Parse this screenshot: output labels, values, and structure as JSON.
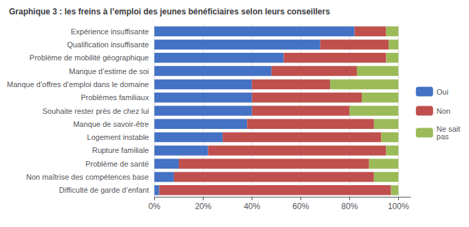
{
  "chart_data": {
    "type": "bar",
    "title": "Graphique 3 : les freins à l’emploi des jeunes bénéficiaires selon leurs conseillers",
    "orientation": "horizontal",
    "stacked": true,
    "categories": [
      "Difficulté de garde d’enfant",
      "Non maîtrise des compétences base",
      "Problème de santé",
      "Rupture familiale",
      "Logement instable",
      "Manque de savoir-être",
      "Souhaite rester près de chez lui",
      "Problèmes familiaux",
      "Manque d’offres d’emploi dans le domaine",
      "Manque d’estime de soi",
      "Problème de mobilité géographique",
      "Qualification insuffisante",
      "Expérience insuffisante"
    ],
    "series": [
      {
        "name": "Oui",
        "color": "#4472C4",
        "values": [
          2,
          8,
          10,
          22,
          28,
          38,
          40,
          40,
          40,
          48,
          53,
          68,
          82
        ]
      },
      {
        "name": "Non",
        "color": "#C0504D",
        "values": [
          95,
          82,
          78,
          73,
          65,
          52,
          40,
          45,
          32,
          35,
          42,
          28,
          13
        ]
      },
      {
        "name": "Ne sait\npas",
        "color": "#9BBB59",
        "values": [
          3,
          10,
          12,
          5,
          7,
          10,
          20,
          15,
          28,
          17,
          5,
          4,
          5
        ]
      }
    ],
    "xlim": [
      0,
      105
    ],
    "xticks": [
      {
        "value": 0,
        "label": "0%"
      },
      {
        "value": 20,
        "label": "20%"
      },
      {
        "value": 40,
        "label": "40%"
      },
      {
        "value": 60,
        "label": "60%"
      },
      {
        "value": 80,
        "label": "80%"
      },
      {
        "value": 100,
        "label": "100%"
      }
    ],
    "grid": true,
    "legend": "right"
  }
}
